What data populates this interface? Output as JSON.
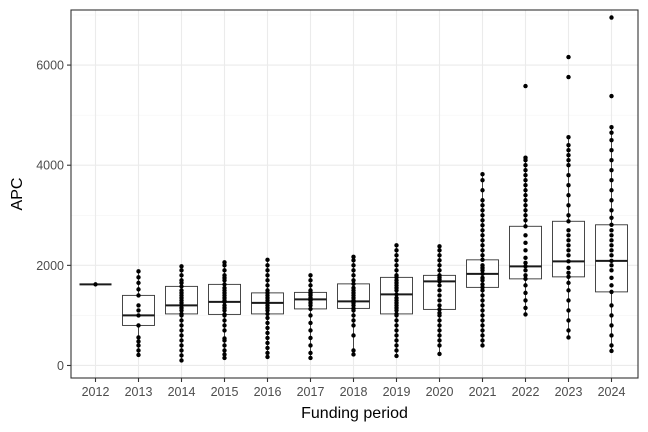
{
  "chart_data": {
    "type": "boxplot",
    "xlabel": "Funding period",
    "ylabel": "APC",
    "ylim": [
      -250,
      7100
    ],
    "yticks": [
      0,
      2000,
      4000,
      6000
    ],
    "grid": true,
    "legend": "none",
    "colors": {
      "points": "#000000",
      "box_border": "#333333",
      "grid": "#ebebeb",
      "panel_border": "#333333"
    },
    "categories": [
      "2012",
      "2013",
      "2014",
      "2015",
      "2016",
      "2017",
      "2018",
      "2019",
      "2020",
      "2021",
      "2022",
      "2023",
      "2024"
    ],
    "boxes": [
      {
        "category": "2012",
        "min": 1620,
        "q1": 1620,
        "median": 1620,
        "q3": 1620,
        "max": 1620
      },
      {
        "category": "2013",
        "min": 210,
        "q1": 800,
        "median": 1000,
        "q3": 1400,
        "max": 1880
      },
      {
        "category": "2014",
        "min": 100,
        "q1": 1030,
        "median": 1200,
        "q3": 1580,
        "max": 1980
      },
      {
        "category": "2015",
        "min": 150,
        "q1": 1020,
        "median": 1270,
        "q3": 1620,
        "max": 2060
      },
      {
        "category": "2016",
        "min": 170,
        "q1": 1030,
        "median": 1250,
        "q3": 1450,
        "max": 2110
      },
      {
        "category": "2017",
        "min": 150,
        "q1": 1130,
        "median": 1320,
        "q3": 1460,
        "max": 1800
      },
      {
        "category": "2018",
        "min": 220,
        "q1": 1140,
        "median": 1280,
        "q3": 1630,
        "max": 2170
      },
      {
        "category": "2019",
        "min": 190,
        "q1": 1030,
        "median": 1420,
        "q3": 1760,
        "max": 2400
      },
      {
        "category": "2020",
        "min": 230,
        "q1": 1120,
        "median": 1680,
        "q3": 1800,
        "max": 2380
      },
      {
        "category": "2021",
        "min": 400,
        "q1": 1560,
        "median": 1830,
        "q3": 2110,
        "max": 3820
      },
      {
        "category": "2022",
        "min": 1020,
        "q1": 1730,
        "median": 1980,
        "q3": 2780,
        "max": 4150
      },
      {
        "category": "2023",
        "min": 560,
        "q1": 1770,
        "median": 2080,
        "q3": 2880,
        "max": 4560
      },
      {
        "category": "2024",
        "min": 290,
        "q1": 1470,
        "median": 2090,
        "q3": 2810,
        "max": 4760
      }
    ],
    "points": [
      {
        "category": "2012",
        "values": [
          1620
        ]
      },
      {
        "category": "2013",
        "values": [
          210,
          300,
          400,
          480,
          560,
          800,
          1000,
          1100,
          1200,
          1400,
          1520,
          1650,
          1760,
          1880
        ]
      },
      {
        "category": "2014",
        "values": [
          100,
          200,
          300,
          400,
          500,
          600,
          700,
          800,
          900,
          1000,
          1030,
          1100,
          1150,
          1200,
          1250,
          1300,
          1350,
          1400,
          1450,
          1500,
          1580,
          1650,
          1700,
          1800,
          1900,
          1980
        ]
      },
      {
        "category": "2015",
        "values": [
          150,
          220,
          300,
          400,
          500,
          540,
          700,
          800,
          900,
          1000,
          1020,
          1100,
          1150,
          1200,
          1270,
          1300,
          1350,
          1400,
          1450,
          1500,
          1550,
          1620,
          1700,
          1750,
          1800,
          1900,
          2000,
          2060
        ]
      },
      {
        "category": "2016",
        "values": [
          170,
          250,
          350,
          450,
          550,
          650,
          750,
          850,
          950,
          1030,
          1100,
          1150,
          1200,
          1250,
          1300,
          1350,
          1400,
          1450,
          1500,
          1600,
          1700,
          1800,
          1900,
          2000,
          2110
        ]
      },
      {
        "category": "2017",
        "values": [
          150,
          250,
          400,
          550,
          700,
          850,
          1000,
          1130,
          1200,
          1250,
          1300,
          1320,
          1350,
          1400,
          1430,
          1460,
          1500,
          1600,
          1700,
          1800
        ]
      },
      {
        "category": "2018",
        "values": [
          220,
          300,
          600,
          800,
          900,
          1000,
          1100,
          1140,
          1200,
          1250,
          1280,
          1300,
          1350,
          1400,
          1450,
          1500,
          1550,
          1630,
          1700,
          1800,
          1900,
          2000,
          2100,
          2170
        ]
      },
      {
        "category": "2019",
        "values": [
          190,
          300,
          400,
          500,
          600,
          700,
          800,
          900,
          1000,
          1030,
          1100,
          1150,
          1200,
          1250,
          1300,
          1350,
          1420,
          1500,
          1550,
          1600,
          1650,
          1700,
          1760,
          1800,
          1900,
          2000,
          2100,
          2200,
          2300,
          2400
        ]
      },
      {
        "category": "2020",
        "values": [
          230,
          400,
          500,
          600,
          700,
          800,
          900,
          1000,
          1050,
          1120,
          1200,
          1300,
          1400,
          1500,
          1600,
          1680,
          1720,
          1760,
          1800,
          1900,
          2000,
          2100,
          2200,
          2300,
          2380
        ]
      },
      {
        "category": "2021",
        "values": [
          400,
          500,
          600,
          700,
          800,
          900,
          1000,
          1100,
          1200,
          1300,
          1400,
          1500,
          1560,
          1620,
          1700,
          1750,
          1830,
          1900,
          1950,
          2000,
          2110,
          2200,
          2300,
          2400,
          2500,
          2600,
          2700,
          2800,
          2900,
          3000,
          3100,
          3200,
          3300,
          3500,
          3700,
          3820
        ]
      },
      {
        "category": "2022",
        "values": [
          1020,
          1150,
          1300,
          1450,
          1600,
          1730,
          1800,
          1900,
          1980,
          2050,
          2150,
          2300,
          2450,
          2600,
          2780,
          2900,
          3000,
          3100,
          3200,
          3300,
          3400,
          3500,
          3600,
          3700,
          3800,
          3900,
          4000,
          4100,
          4150,
          5580
        ]
      },
      {
        "category": "2023",
        "values": [
          560,
          700,
          900,
          1100,
          1300,
          1500,
          1650,
          1770,
          1850,
          1950,
          2080,
          2200,
          2300,
          2400,
          2500,
          2600,
          2700,
          2880,
          3000,
          3200,
          3400,
          3600,
          3800,
          4000,
          4100,
          4200,
          4300,
          4400,
          4560,
          5760,
          6160
        ]
      },
      {
        "category": "2024",
        "values": [
          290,
          400,
          600,
          800,
          1000,
          1200,
          1470,
          1600,
          1750,
          1900,
          2000,
          2090,
          2200,
          2300,
          2400,
          2500,
          2600,
          2700,
          2810,
          2950,
          3100,
          3300,
          3500,
          3700,
          3900,
          4100,
          4300,
          4500,
          4650,
          4760,
          5380,
          6950
        ]
      }
    ]
  }
}
